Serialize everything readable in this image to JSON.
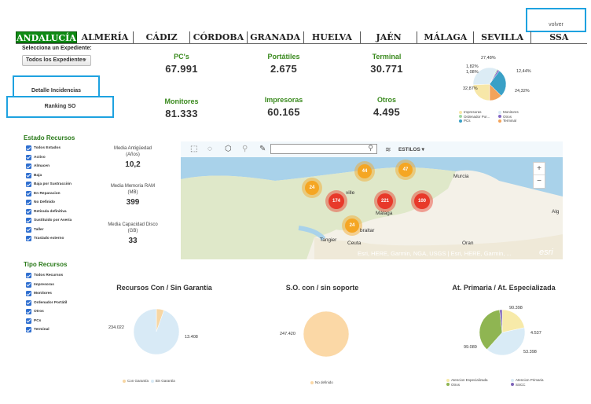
{
  "header": {
    "volver_label": "volver",
    "tabs": [
      {
        "label": "ANDALUCÍA",
        "active": true
      },
      {
        "label": "ALMERÍA",
        "active": false
      },
      {
        "label": "CÁDIZ",
        "active": false
      },
      {
        "label": "CÓRDOBA",
        "active": false
      },
      {
        "label": "GRANADA",
        "active": false
      },
      {
        "label": "HUELVA",
        "active": false
      },
      {
        "label": "JAÉN",
        "active": false
      },
      {
        "label": "MÁLAGA",
        "active": false
      },
      {
        "label": "SEVILLA",
        "active": false
      },
      {
        "label": "SSA",
        "active": false
      }
    ]
  },
  "sidebar": {
    "expediente_label": "Selecciona un Expediente:",
    "expediente_value": "Todos los Expedientes",
    "detalle_label": "Detalle Incidencias",
    "ranking_label": "Ranking SO",
    "estado_title": "Estado Recursos",
    "estado_items": [
      "Todos Estados",
      "Activo",
      "Almacen",
      "Baja",
      "Baja por Sustracción",
      "En Reparacion",
      "No Definido",
      "Retirada definitiva",
      "Sustituido por Avería",
      "Taller",
      "Traslado externo"
    ],
    "tipo_title": "Tipo Recursos",
    "tipo_items": [
      "Todos Recursos",
      "Impresoras",
      "Monitores",
      "Ordenador Portátil",
      "Otros",
      "PCs",
      "Terminal"
    ]
  },
  "kpis": {
    "pcs": {
      "label": "PC's",
      "value": "67.991"
    },
    "portatiles": {
      "label": "Portátiles",
      "value": "2.675"
    },
    "terminal": {
      "label": "Terminal",
      "value": "30.771"
    },
    "monitores": {
      "label": "Monitores",
      "value": "81.333"
    },
    "impresoras": {
      "label": "Impresoras",
      "value": "60.165"
    },
    "otros": {
      "label": "Otros",
      "value": "4.495"
    }
  },
  "stats": {
    "antiguedad": {
      "label1": "Media Antigüedad",
      "label2": "(Años)",
      "value": "10,2"
    },
    "ram": {
      "label1": "Media Memoria RAM",
      "label2": "(MB)",
      "value": "399"
    },
    "disco": {
      "label1": "Media Capacidad Disco",
      "label2": "(GB)",
      "value": "33"
    }
  },
  "map": {
    "search_placeholder": "",
    "estilos_label": "ESTILOS",
    "zoom_in": "+",
    "zoom_out": "−",
    "clusters": [
      {
        "label": "44",
        "color": "orange"
      },
      {
        "label": "47",
        "color": "orange"
      },
      {
        "label": "24",
        "color": "orange"
      },
      {
        "label": "174",
        "color": "red"
      },
      {
        "label": "221",
        "color": "red"
      },
      {
        "label": "100",
        "color": "red"
      },
      {
        "label": "24",
        "color": "orange"
      }
    ],
    "cities": [
      "Murcia",
      "ville",
      "Málaga",
      "Tangier",
      "Ceuta",
      "braltar",
      "Oran",
      "Alg"
    ],
    "attribution": "Esri, HERE, Garmin, NGA, USGS | Esri, HERE, Garmin, ...",
    "logo": "esri"
  },
  "chart_data": [
    {
      "type": "pie",
      "title": "",
      "categories": [
        "Impresoras",
        "Monitores",
        "Ordenador Por...",
        "Otros",
        "PCs",
        "Terminal"
      ],
      "values": [
        24.32,
        32.87,
        1.08,
        1.82,
        27.48,
        12.44
      ],
      "value_labels": [
        "24,32%",
        "32,87%",
        "1,08%",
        "1,82%",
        "27,48%",
        "12,44%"
      ],
      "colors": [
        "#f7e7a8",
        "#dcecf5",
        "#9fd8a2",
        "#8468c5",
        "#3aa0c6",
        "#f3a35a"
      ],
      "legend_position": "bottom"
    },
    {
      "type": "pie",
      "title": "Recursos Con / Sin Garantía",
      "categories": [
        "Con Garantía",
        "Sin Garantía"
      ],
      "values": [
        13408,
        234022
      ],
      "value_labels": [
        "13.408",
        "234.022"
      ],
      "colors": [
        "#f7d6a3",
        "#d8eaf6"
      ],
      "legend_position": "bottom"
    },
    {
      "type": "pie",
      "title": "S.O. con / sin soporte",
      "categories": [
        "No definido"
      ],
      "values": [
        247420
      ],
      "value_labels": [
        "247.420"
      ],
      "colors": [
        "#fbd8a6"
      ],
      "legend_position": "bottom"
    },
    {
      "type": "pie",
      "title": "At. Primaria / At. Especializada",
      "categories": [
        "Atencion Especializada",
        "Atencion Primaria",
        "Otros",
        "SSCC"
      ],
      "values": [
        53398,
        99089,
        90398,
        4537
      ],
      "value_labels": [
        "53.398",
        "99.089",
        "90.398",
        "4.537"
      ],
      "colors": [
        "#f7eaa9",
        "#d9ebf6",
        "#8fb552",
        "#7d64b8"
      ],
      "legend_position": "bottom"
    }
  ]
}
